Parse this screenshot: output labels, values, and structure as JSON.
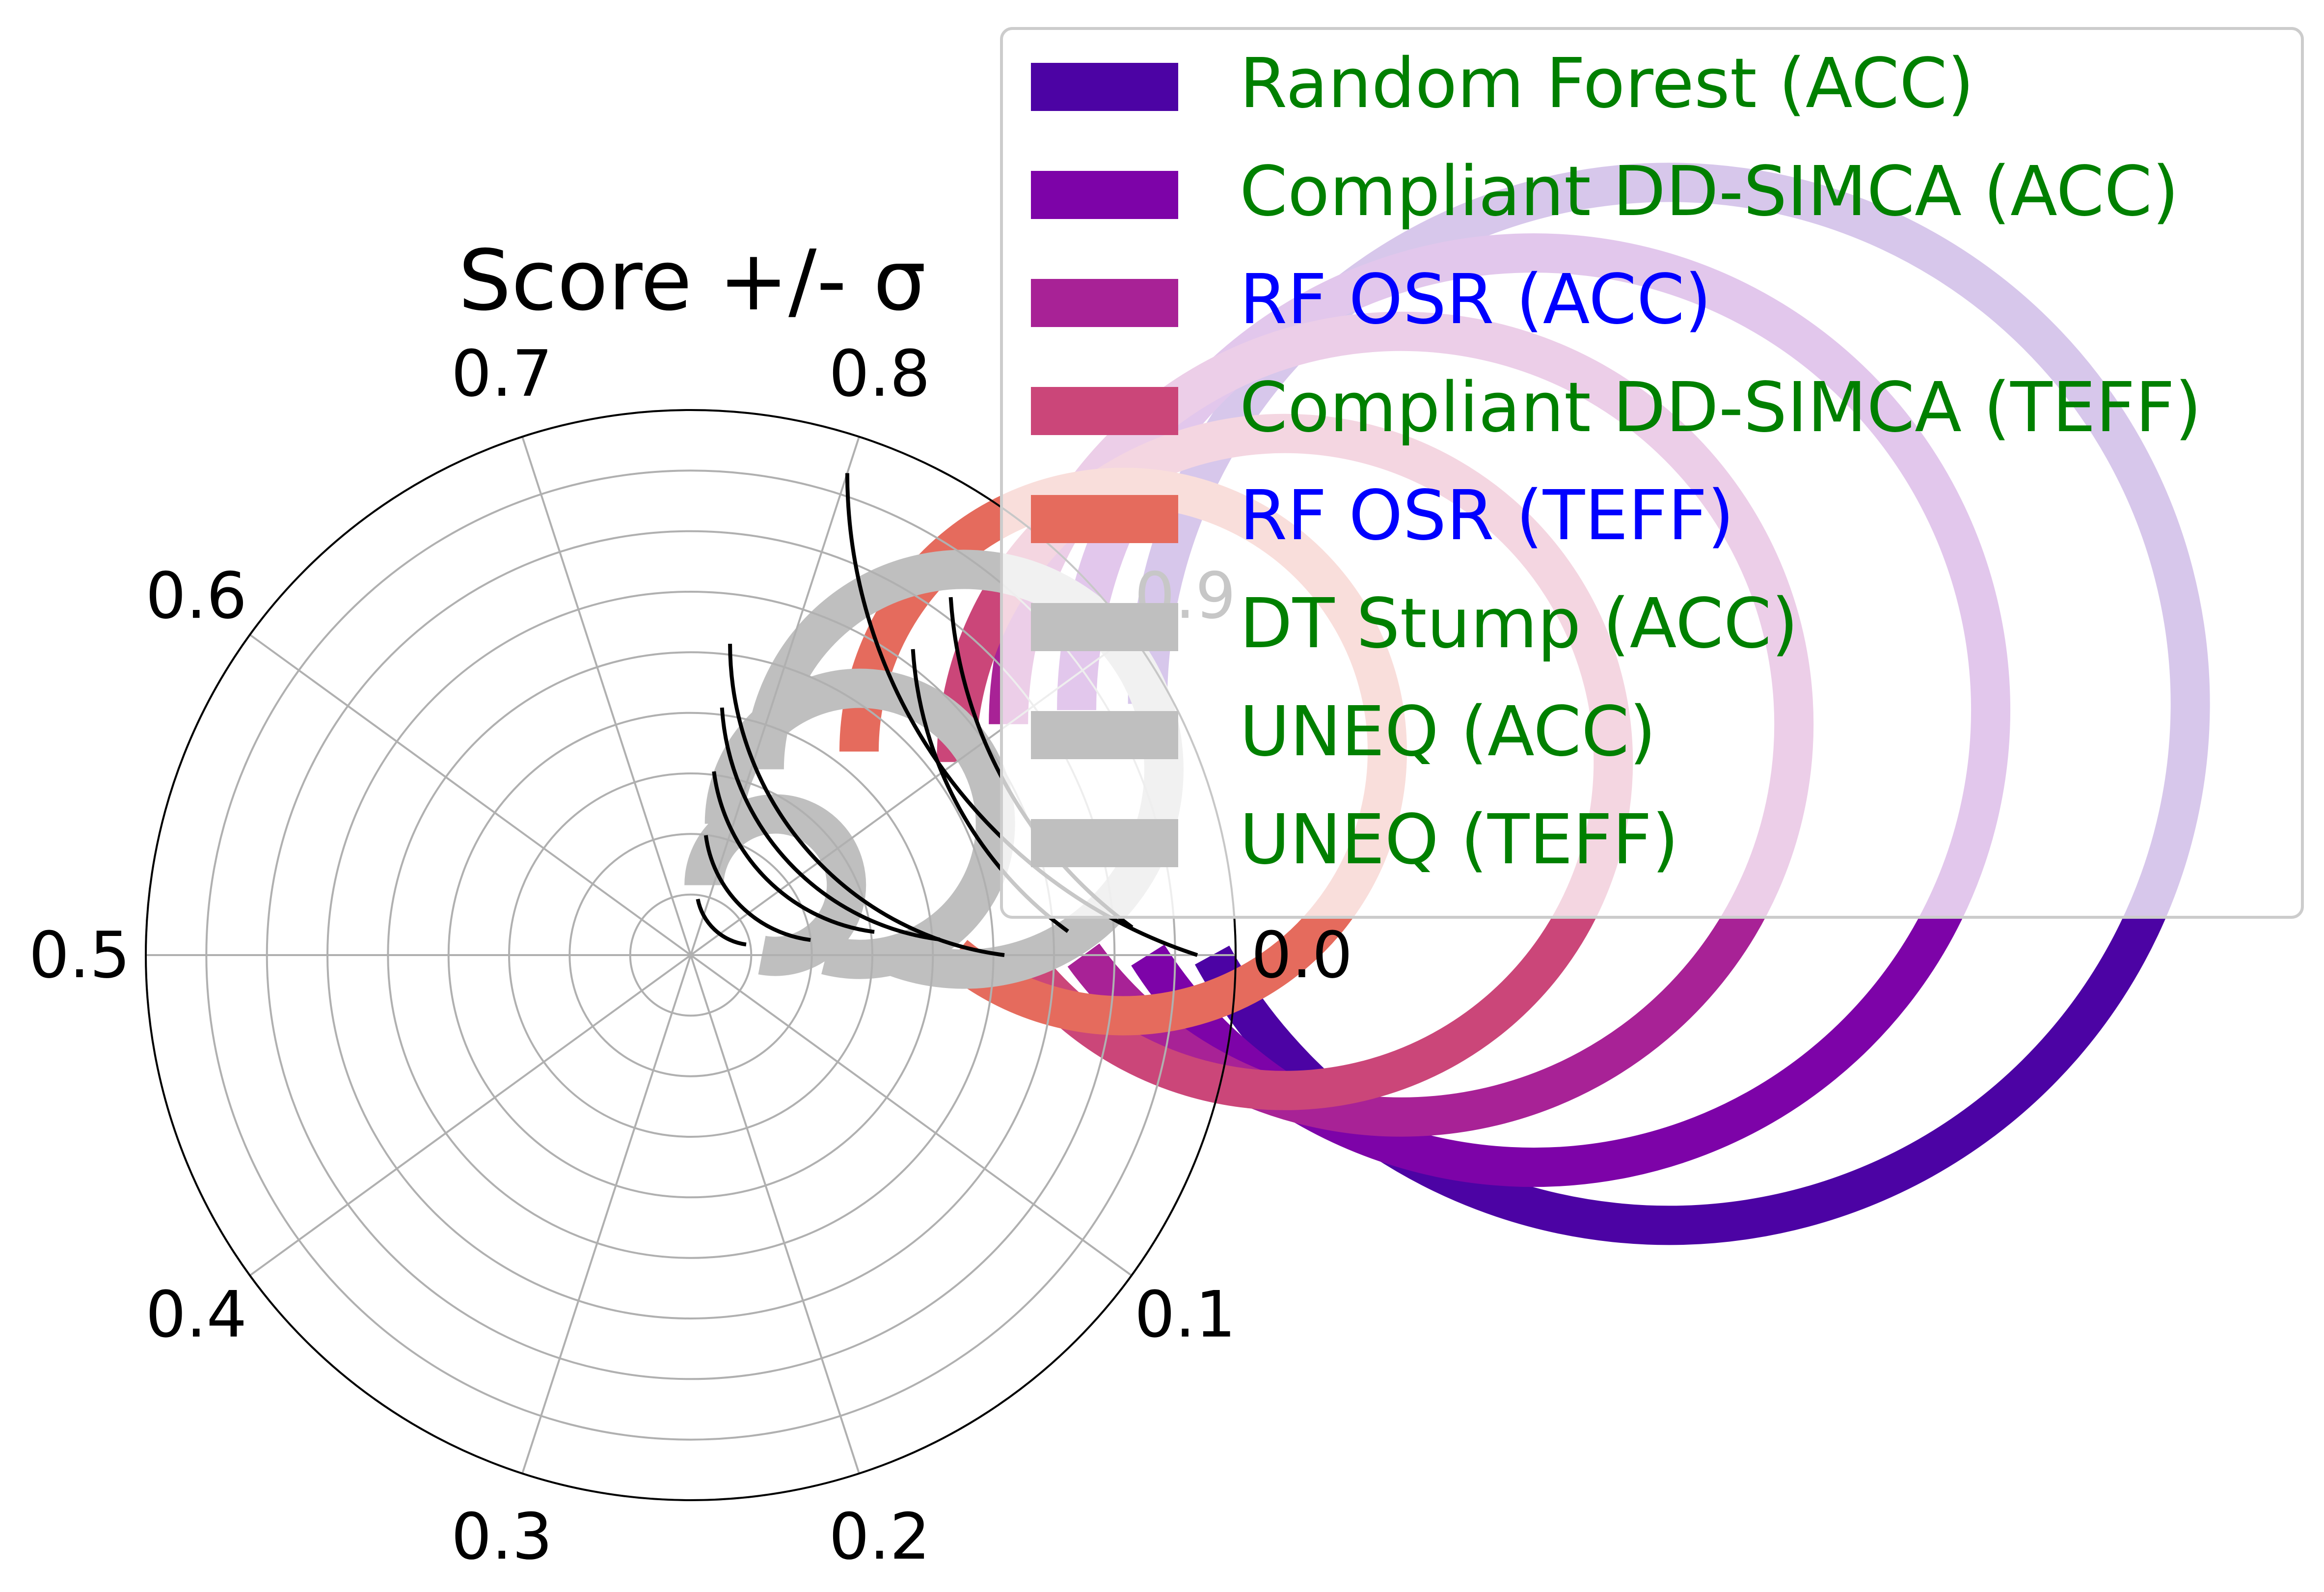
{
  "chart_data": {
    "type": "radial-bar",
    "title": "Score +/- σ",
    "theta_ticks": [
      "0.0",
      "0.1",
      "0.2",
      "0.3",
      "0.4",
      "0.5",
      "0.6",
      "0.7",
      "0.8",
      "0.9"
    ],
    "theta_range": [
      0,
      1
    ],
    "radial_grid": true,
    "legend_position": "top-right",
    "series": [
      {
        "name": "Random Forest (ACC)",
        "value": 0.92,
        "sigma_low": 0.8,
        "sigma_high": 1.0,
        "color": "#4c03a4",
        "legend_text_color": "#008000"
      },
      {
        "name": "Compliant DD-SIMCA (ACC)",
        "value": 0.91,
        "sigma_low": 0.85,
        "sigma_high": 0.99,
        "color": "#7d03a8",
        "legend_text_color": "#008000"
      },
      {
        "name": "RF OSR (ACC)",
        "value": 0.9,
        "sigma_low": 0.85,
        "sigma_high": 0.99,
        "color": "#a82296",
        "legend_text_color": "#0000ff"
      },
      {
        "name": "Compliant DD-SIMCA (TEFF)",
        "value": 0.9,
        "sigma_low": 0.77,
        "sigma_high": 1.0,
        "color": "#cb4679",
        "legend_text_color": "#008000"
      },
      {
        "name": "RF OSR (TEFF)",
        "value": 0.86,
        "sigma_low": 0.77,
        "sigma_high": 0.99,
        "color": "#e56b5d",
        "legend_text_color": "#0000ff"
      },
      {
        "name": "DT Stump (ACC)",
        "value": 0.81,
        "sigma_low": 0.77,
        "sigma_high": 0.98,
        "color": "#bfbfbf",
        "legend_text_color": "#008000"
      },
      {
        "name": "UNEQ (ACC)",
        "value": 0.79,
        "sigma_low": 0.77,
        "sigma_high": 0.98,
        "color": "#bfbfbf",
        "legend_text_color": "#008000"
      },
      {
        "name": "UNEQ (TEFF)",
        "value": 0.78,
        "sigma_low": 0.77,
        "sigma_high": 0.97,
        "color": "#bfbfbf",
        "legend_text_color": "#008000"
      }
    ]
  }
}
